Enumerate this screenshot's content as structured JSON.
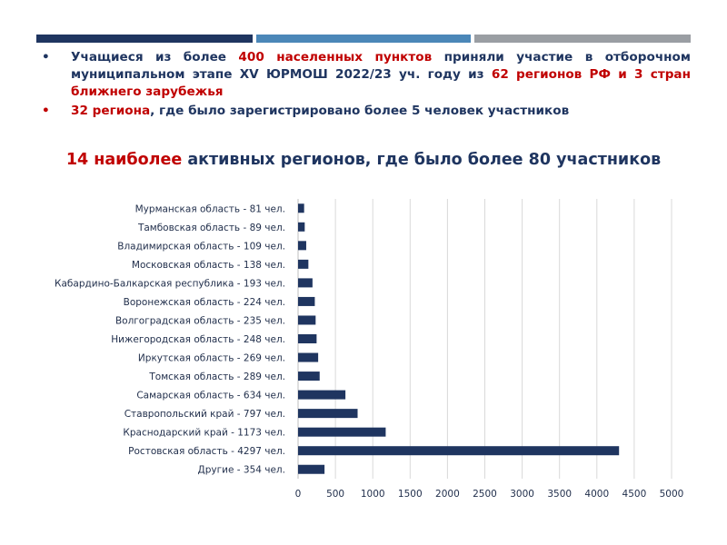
{
  "header_bars": {
    "colors": [
      "#1f3560",
      "#4b87b8",
      "#9a9ea3"
    ]
  },
  "bullets": [
    {
      "marker": "•",
      "parts": [
        {
          "text": "Учащиеся из более ",
          "color": "navy"
        },
        {
          "text": "400 населенных пунктов",
          "color": "red"
        },
        {
          "text": " приняли участие в отборочном муниципальном этапе XV ЮРМОШ 2022/23 уч. году из ",
          "color": "navy"
        },
        {
          "text": "62 регионов РФ и 3 стран ближнего зарубежья",
          "color": "red"
        }
      ]
    },
    {
      "marker": "•",
      "parts": [
        {
          "text": "32 региона",
          "color": "red"
        },
        {
          "text": ", где было зарегистрировано более 5 человек участников",
          "color": "navy"
        }
      ]
    }
  ],
  "chart_title": {
    "prefix": "14 наиболее",
    "rest": " активных регионов, где было более 80 участников"
  },
  "chart_data": {
    "type": "bar",
    "orientation": "horizontal",
    "categories": [
      "Мурманская область - 81 чел.",
      "Тамбовская область - 89 чел.",
      "Владимирская область - 109 чел.",
      "Московская область - 138 чел.",
      "Кабардино-Балкарская республика - 193 чел.",
      "Воронежская область - 224 чел.",
      "Волгоградская область - 235 чел.",
      "Нижегородская область - 248 чел.",
      "Иркутская область - 269 чел.",
      "Томская область - 289 чел.",
      "Самарская область - 634 чел.",
      "Ставропольский край - 797 чел.",
      "Краснодарский край - 1173 чел.",
      "Ростовская область - 4297 чел.",
      "Другие - 354 чел."
    ],
    "values": [
      81,
      89,
      109,
      138,
      193,
      224,
      235,
      248,
      269,
      289,
      634,
      797,
      1173,
      4297,
      354
    ],
    "xlim": [
      0,
      5000
    ],
    "xticks": [
      0,
      500,
      1000,
      1500,
      2000,
      2500,
      3000,
      3500,
      4000,
      4500,
      5000
    ],
    "grid": true,
    "legend": "none",
    "bar_color": "#1f3560",
    "grid_color": "#d9d9d9"
  }
}
